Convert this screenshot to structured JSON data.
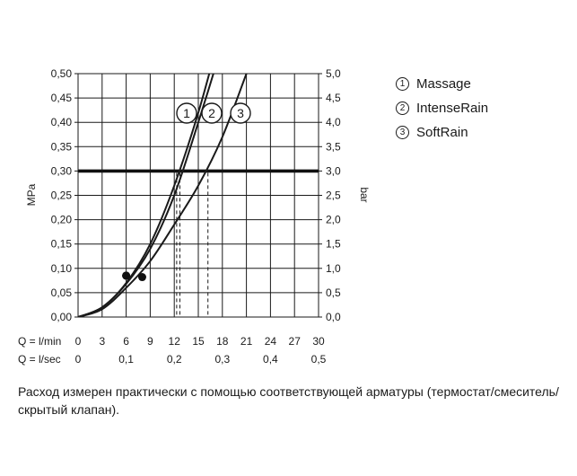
{
  "chart_data": {
    "type": "line",
    "left_axis": {
      "label": "MPa",
      "ticks": [
        "0,00",
        "0,05",
        "0,10",
        "0,15",
        "0,20",
        "0,25",
        "0,30",
        "0,35",
        "0,40",
        "0,45",
        "0,50"
      ],
      "range": [
        0,
        0.5
      ]
    },
    "right_axis": {
      "label": "bar",
      "ticks": [
        "0,0",
        "0,5",
        "1,0",
        "1,5",
        "2,0",
        "2,5",
        "3,0",
        "3,5",
        "4,0",
        "4,5",
        "5,0"
      ],
      "range": [
        0,
        5
      ]
    },
    "x_axis_lmin": {
      "label": "Q = l/min",
      "ticks": [
        "0",
        "3",
        "6",
        "9",
        "12",
        "15",
        "18",
        "21",
        "24",
        "27",
        "30"
      ],
      "range": [
        0,
        30
      ]
    },
    "x_axis_lsec": {
      "label": "Q = l/sec",
      "ticks": [
        "0",
        "0,1",
        "0,2",
        "0,3",
        "0,4",
        "0,5"
      ]
    },
    "reference_line_mpa": 0.3,
    "grid": true,
    "series": [
      {
        "name": "Massage",
        "marker": "1",
        "points": [
          [
            0,
            0
          ],
          [
            3,
            0.02
          ],
          [
            6,
            0.07
          ],
          [
            9,
            0.15
          ],
          [
            12,
            0.27
          ],
          [
            15,
            0.42
          ],
          [
            17.5,
            0.57
          ]
        ],
        "marked_point": [
          6.0,
          0.085
        ],
        "drop_x": 12.3
      },
      {
        "name": "IntenseRain",
        "marker": "2",
        "points": [
          [
            0,
            0
          ],
          [
            3,
            0.02
          ],
          [
            6,
            0.068
          ],
          [
            9,
            0.14
          ],
          [
            12,
            0.25
          ],
          [
            15,
            0.4
          ],
          [
            18,
            0.56
          ]
        ],
        "marked_point": [
          6.0,
          0.085
        ],
        "drop_x": 12.7
      },
      {
        "name": "SoftRain",
        "marker": "3",
        "points": [
          [
            0,
            0
          ],
          [
            3,
            0.016
          ],
          [
            6,
            0.06
          ],
          [
            9,
            0.115
          ],
          [
            12,
            0.19
          ],
          [
            15,
            0.27
          ],
          [
            18,
            0.37
          ],
          [
            21,
            0.5
          ]
        ],
        "marked_point": [
          8.0,
          0.082
        ],
        "drop_x": 16.2
      }
    ]
  },
  "legend": [
    {
      "marker": "1",
      "label": "Massage"
    },
    {
      "marker": "2",
      "label": "IntenseRain"
    },
    {
      "marker": "3",
      "label": "SoftRain"
    }
  ],
  "note": "Расход измерен практически с помощью соответствующей арматуры (термостат/смеситель/скрытый клапан)."
}
